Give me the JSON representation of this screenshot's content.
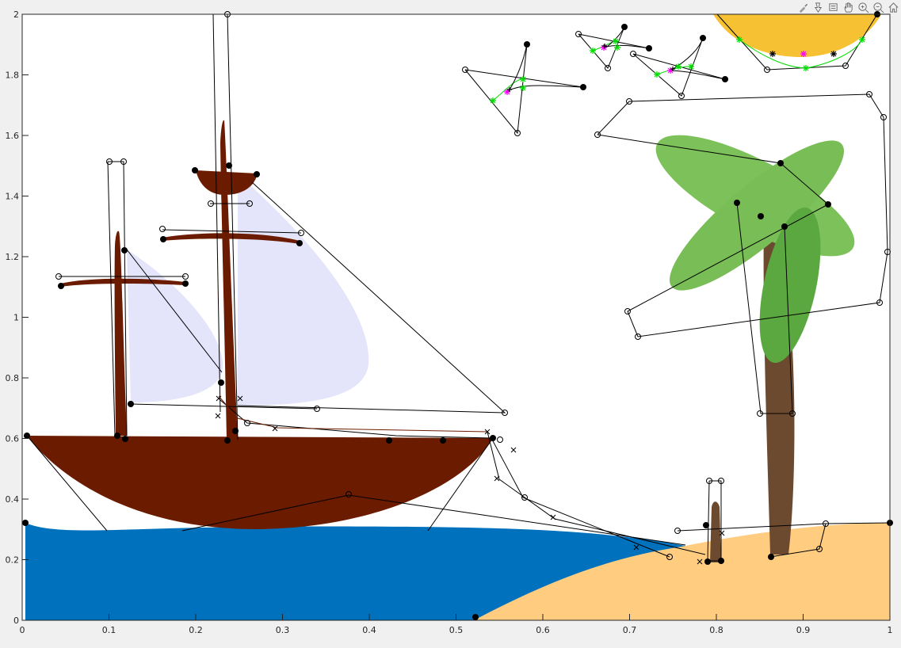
{
  "axes": {
    "xlim": [
      0,
      1
    ],
    "ylim": [
      0,
      2
    ],
    "xticks": [
      "0",
      "0.1",
      "0.2",
      "0.3",
      "0.4",
      "0.5",
      "0.6",
      "0.7",
      "0.8",
      "0.9",
      "1"
    ],
    "yticks": [
      "0",
      "0.2",
      "0.4",
      "0.6",
      "0.8",
      "1",
      "1.2",
      "1.4",
      "1.6",
      "1.8",
      "2"
    ]
  },
  "toolbar": [
    {
      "name": "brush-icon"
    },
    {
      "name": "export-icon"
    },
    {
      "name": "datatip-icon"
    },
    {
      "name": "pan-icon"
    },
    {
      "name": "zoom-in-icon"
    },
    {
      "name": "zoom-out-icon"
    },
    {
      "name": "home-icon"
    }
  ],
  "colors": {
    "hull": "#6b1c00",
    "mast": "#6b1c00",
    "sail": "#e4e4fa",
    "sea": "#0072bd",
    "sand": "#ffcc80",
    "trunk": "#6b4a30",
    "leaf_light": "#7cc15a",
    "leaf_dark": "#5aa83f",
    "sun": "#f6c233",
    "bird_curve": "#00dd00",
    "bird_mid": "#ff00ff"
  }
}
